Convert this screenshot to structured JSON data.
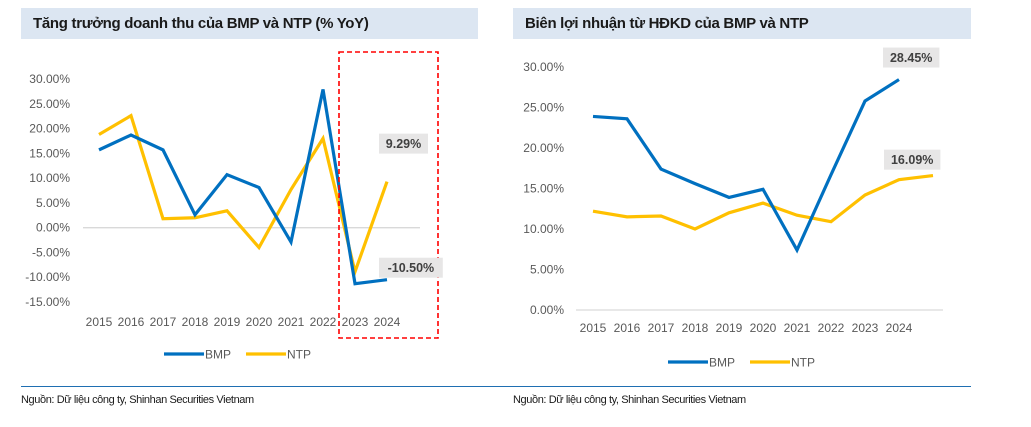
{
  "colors": {
    "bmp": "#0070c0",
    "ntp": "#ffc000",
    "title_bg": "#dce6f2",
    "highlight_box": "#ff0000",
    "label_bg": "#e7e6e6",
    "source_rule": "#1f6fb2"
  },
  "chart_data": [
    {
      "type": "line",
      "title": "Tăng trưởng doanh thu của BMP và NTP (% YoY)",
      "xlabel": "",
      "ylabel": "",
      "categories": [
        "2015",
        "2016",
        "2017",
        "2018",
        "2019",
        "2020",
        "2021",
        "2022",
        "2023",
        "2024"
      ],
      "ylim": [
        -15,
        30
      ],
      "yticks": [
        30,
        25,
        20,
        15,
        10,
        5,
        0,
        -5,
        -10,
        -15
      ],
      "ytick_labels": [
        "30.00%",
        "25.00%",
        "20.00%",
        "15.00%",
        "10.00%",
        "5.00%",
        "0.00%",
        "-5.00%",
        "-10.00%",
        "-15.00%"
      ],
      "grid": false,
      "zero_line": true,
      "series": [
        {
          "name": "BMP",
          "values": [
            15.7,
            18.7,
            15.7,
            2.6,
            10.7,
            8.1,
            -2.9,
            27.9,
            -11.3,
            -10.5
          ]
        },
        {
          "name": "NTP",
          "values": [
            18.8,
            22.6,
            1.8,
            2.0,
            3.4,
            -4.0,
            7.7,
            18.0,
            -8.9,
            9.29
          ]
        }
      ],
      "data_labels": [
        {
          "series": "NTP",
          "category": "2024",
          "text": "9.29%"
        },
        {
          "series": "BMP",
          "category": "2024",
          "text": "-10.50%"
        }
      ],
      "annotations": [
        {
          "type": "dashed-box",
          "covers": [
            "2023",
            "2024"
          ]
        }
      ],
      "legend": {
        "position": "bottom",
        "entries": [
          "BMP",
          "NTP"
        ]
      },
      "source": "Nguồn: Dữ liệu công ty, Shinhan Securities Vietnam"
    },
    {
      "type": "line",
      "title": "Biên lợi nhuận từ HĐKD của BMP và NTP",
      "xlabel": "",
      "ylabel": "",
      "categories": [
        "2015",
        "2016",
        "2017",
        "2018",
        "2019",
        "2020",
        "2021",
        "2022",
        "2023",
        "2024"
      ],
      "ylim": [
        0,
        30
      ],
      "yticks": [
        30,
        25,
        20,
        15,
        10,
        5,
        0
      ],
      "ytick_labels": [
        "30.00%",
        "25.00%",
        "20.00%",
        "15.00%",
        "10.00%",
        "5.00%",
        "0.00%"
      ],
      "grid": false,
      "zero_line": true,
      "series": [
        {
          "name": "BMP",
          "values": [
            23.9,
            23.6,
            17.4,
            15.6,
            13.9,
            14.9,
            7.4,
            16.7,
            25.8,
            28.45
          ]
        },
        {
          "name": "NTP",
          "values": [
            12.2,
            11.5,
            11.6,
            10.0,
            12.0,
            13.2,
            11.7,
            10.9,
            14.2,
            16.09
          ],
          "extra_point": 16.6
        }
      ],
      "data_labels": [
        {
          "series": "BMP",
          "category": "2024",
          "text": "28.45%"
        },
        {
          "series": "NTP",
          "category": "2024",
          "text": "16.09%"
        }
      ],
      "legend": {
        "position": "bottom",
        "entries": [
          "BMP",
          "NTP"
        ]
      },
      "source": "Nguồn: Dữ liệu công ty, Shinhan Securities Vietnam"
    }
  ]
}
